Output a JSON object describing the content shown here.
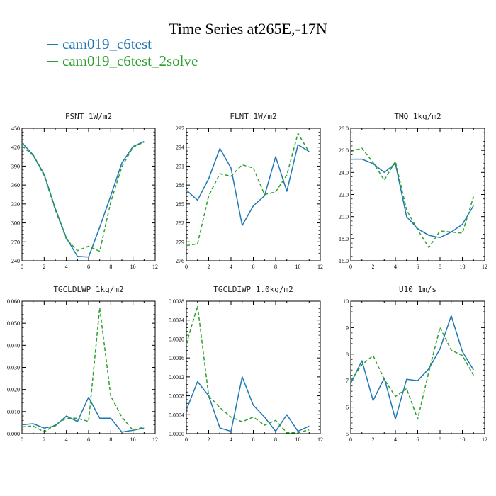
{
  "title": "Time Series at265E,-17N",
  "legend": [
    {
      "name": "cam019_c6test",
      "color": "#1f77b4"
    },
    {
      "name": "cam019_c6test_2solve",
      "color": "#2ca02c"
    }
  ],
  "chart_data": [
    {
      "type": "line",
      "title": "FSNT   1W/m2",
      "x": [
        0,
        1,
        2,
        3,
        4,
        5,
        6,
        7,
        8,
        9,
        10,
        11
      ],
      "xticks": [
        "0",
        "2",
        "4",
        "6",
        "8",
        "10",
        "12"
      ],
      "xlim": [
        0,
        12
      ],
      "yticks": [
        "240",
        "270",
        "300",
        "330",
        "360",
        "390",
        "420",
        "450"
      ],
      "ylim": [
        240,
        450
      ],
      "series": [
        {
          "name": "cam019_c6test",
          "color": "#1f77b4",
          "dash": "",
          "values": [
            427,
            408,
            377,
            323,
            276,
            247,
            246,
            293,
            343,
            395,
            421,
            429
          ]
        },
        {
          "name": "cam019_c6test_2solve",
          "color": "#2ca02c",
          "dash": "5,3",
          "values": [
            422,
            407,
            375,
            321,
            274,
            256,
            263,
            255,
            333,
            389,
            420,
            428
          ]
        }
      ]
    },
    {
      "type": "line",
      "title": "FLNT   1W/m2",
      "x": [
        0,
        1,
        2,
        3,
        4,
        5,
        6,
        7,
        8,
        9,
        10,
        11
      ],
      "xticks": [
        "0",
        "2",
        "4",
        "6",
        "8",
        "10",
        "12"
      ],
      "xlim": [
        0,
        12
      ],
      "yticks": [
        "276",
        "279",
        "282",
        "285",
        "288",
        "291",
        "294",
        "297"
      ],
      "ylim": [
        276,
        297
      ],
      "series": [
        {
          "name": "cam019_c6test",
          "color": "#1f77b4",
          "dash": "",
          "values": [
            287.2,
            285.6,
            289.0,
            293.8,
            290.7,
            281.6,
            284.7,
            286.3,
            292.5,
            287.0,
            294.4,
            293.3
          ]
        },
        {
          "name": "cam019_c6test_2solve",
          "color": "#2ca02c",
          "dash": "5,3",
          "values": [
            278.4,
            278.7,
            286.3,
            289.8,
            289.4,
            291.2,
            290.7,
            286.5,
            286.9,
            289.6,
            296.2,
            293.2
          ]
        }
      ]
    },
    {
      "type": "line",
      "title": "TMQ   1kg/m2",
      "x": [
        0,
        1,
        2,
        3,
        4,
        5,
        6,
        7,
        8,
        9,
        10,
        11
      ],
      "xticks": [
        "0",
        "2",
        "4",
        "6",
        "8",
        "10",
        "12"
      ],
      "xlim": [
        0,
        12
      ],
      "yticks": [
        "16.0",
        "18.0",
        "20.0",
        "22.0",
        "24.0",
        "26.0",
        "28.0"
      ],
      "ylim": [
        16,
        28
      ],
      "series": [
        {
          "name": "cam019_c6test",
          "color": "#1f77b4",
          "dash": "",
          "values": [
            25.2,
            25.2,
            24.8,
            24.0,
            24.8,
            20.0,
            18.9,
            18.3,
            18.1,
            18.6,
            19.3,
            21.0
          ]
        },
        {
          "name": "cam019_c6test_2solve",
          "color": "#2ca02c",
          "dash": "5,3",
          "values": [
            25.9,
            26.2,
            24.9,
            23.3,
            25.0,
            20.6,
            18.8,
            17.2,
            18.7,
            18.6,
            18.5,
            21.8
          ]
        }
      ]
    },
    {
      "type": "line",
      "title": "TGCLDLWP   1kg/m2",
      "x": [
        0,
        1,
        2,
        3,
        4,
        5,
        6,
        7,
        8,
        9,
        10,
        11
      ],
      "xticks": [
        "0",
        "2",
        "4",
        "6",
        "8",
        "10",
        "12"
      ],
      "xlim": [
        0,
        12
      ],
      "yticks": [
        "0.000",
        "0.010",
        "0.020",
        "0.030",
        "0.040",
        "0.050",
        "0.060"
      ],
      "ylim": [
        0,
        0.06
      ],
      "series": [
        {
          "name": "cam019_c6test",
          "color": "#1f77b4",
          "dash": "",
          "values": [
            0.004,
            0.0045,
            0.0025,
            0.0035,
            0.008,
            0.0055,
            0.0165,
            0.007,
            0.007,
            0.0007,
            0.0015,
            0.0025
          ]
        },
        {
          "name": "cam019_c6test_2solve",
          "color": "#2ca02c",
          "dash": "5,3",
          "values": [
            0.003,
            0.0035,
            0.0008,
            0.004,
            0.007,
            0.007,
            0.0055,
            0.057,
            0.017,
            0.0075,
            0.0015,
            0.003
          ]
        }
      ]
    },
    {
      "type": "line",
      "title": "TGCLDIWP   1.0kg/m2",
      "x": [
        0,
        1,
        2,
        3,
        4,
        5,
        6,
        7,
        8,
        9,
        10,
        11
      ],
      "xticks": [
        "0",
        "2",
        "4",
        "6",
        "8",
        "10",
        "12"
      ],
      "xlim": [
        0,
        12
      ],
      "yticks": [
        "0.0000",
        "0.0004",
        "0.0008",
        "0.0012",
        "0.0016",
        "0.0020",
        "0.0024",
        "0.0028"
      ],
      "ylim": [
        0,
        0.0028
      ],
      "series": [
        {
          "name": "cam019_c6test",
          "color": "#1f77b4",
          "dash": "",
          "values": [
            0.0005,
            0.0011,
            0.0008,
            0.00012,
            5e-05,
            0.0012,
            0.0006,
            0.00035,
            5e-05,
            0.0004,
            5e-05,
            0.00016
          ]
        },
        {
          "name": "cam019_c6test_2solve",
          "color": "#2ca02c",
          "dash": "5,3",
          "values": [
            0.0019,
            0.0027,
            0.0008,
            0.00055,
            0.00035,
            0.00025,
            0.00035,
            0.00018,
            0.00028,
            2e-05,
            2e-05,
            8e-05
          ]
        }
      ]
    },
    {
      "type": "line",
      "title": "U10   1m/s",
      "x": [
        0,
        1,
        2,
        3,
        4,
        5,
        6,
        7,
        8,
        9,
        10,
        11
      ],
      "xticks": [
        "0",
        "2",
        "4",
        "6",
        "8",
        "10",
        "12"
      ],
      "xlim": [
        0,
        12
      ],
      "yticks": [
        "5",
        "6",
        "7",
        "8",
        "9",
        "10"
      ],
      "ylim": [
        5,
        10
      ],
      "series": [
        {
          "name": "cam019_c6test",
          "color": "#1f77b4",
          "dash": "",
          "values": [
            6.9,
            7.75,
            6.25,
            7.1,
            5.55,
            7.05,
            7.0,
            7.45,
            8.2,
            9.45,
            8.1,
            7.4
          ]
        },
        {
          "name": "cam019_c6test_2solve",
          "color": "#2ca02c",
          "dash": "5,3",
          "values": [
            7.0,
            7.6,
            7.95,
            7.05,
            6.4,
            6.7,
            5.55,
            7.35,
            9.0,
            8.15,
            7.95,
            7.2
          ]
        }
      ]
    }
  ]
}
